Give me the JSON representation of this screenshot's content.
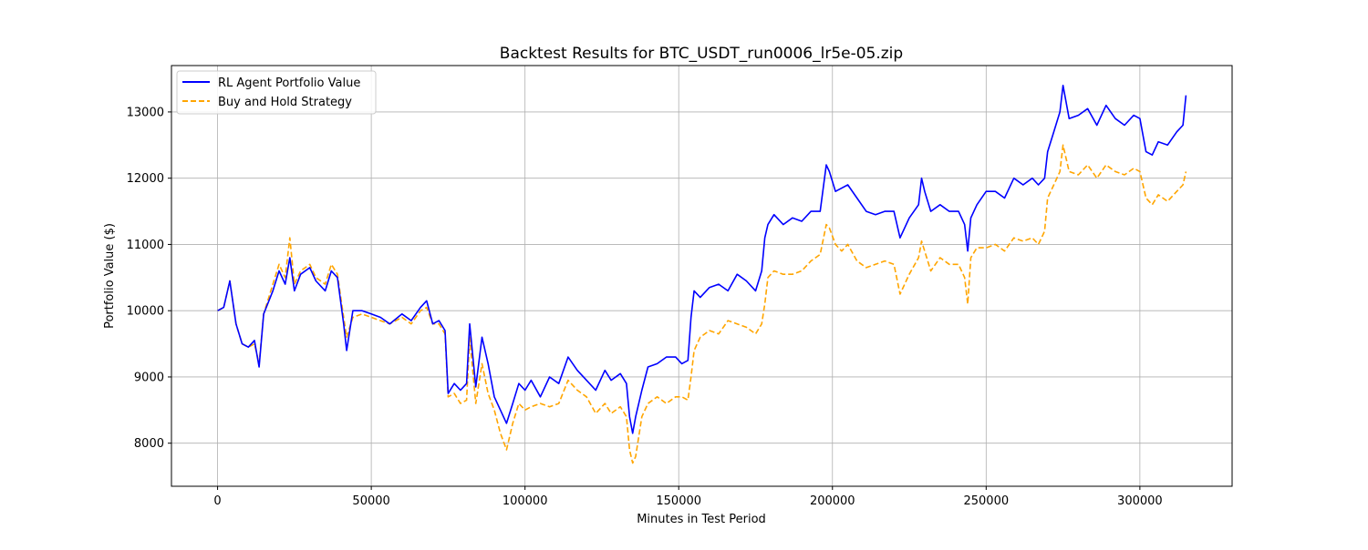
{
  "chart_data": {
    "type": "line",
    "title": "Backtest Results for BTC_USDT_run0006_lr5e-05.zip",
    "xlabel": "Minutes in Test Period",
    "ylabel": "Portfolio Value ($)",
    "xlim": [
      -15000,
      330000
    ],
    "ylim": [
      7350,
      13700
    ],
    "x_ticks": [
      0,
      50000,
      100000,
      150000,
      200000,
      250000,
      300000
    ],
    "x_tick_labels": [
      "0",
      "50000",
      "100000",
      "150000",
      "200000",
      "250000",
      "300000"
    ],
    "y_ticks": [
      8000,
      9000,
      10000,
      11000,
      12000,
      13000
    ],
    "y_tick_labels": [
      "8000",
      "9000",
      "10000",
      "11000",
      "12000",
      "13000"
    ],
    "grid": true,
    "legend_position": "upper-left",
    "series": [
      {
        "name": "RL Agent Portfolio Value",
        "color": "#0000ff",
        "style": "solid",
        "x": [
          0,
          2000,
          4000,
          6000,
          8000,
          10000,
          12000,
          13500,
          15000,
          18000,
          20000,
          22000,
          23500,
          25000,
          27000,
          30000,
          32000,
          35000,
          37000,
          39000,
          41000,
          42000,
          44000,
          47000,
          50000,
          53000,
          56000,
          60000,
          63000,
          66000,
          68000,
          70000,
          72000,
          74000,
          75000,
          77000,
          79000,
          81000,
          82000,
          84000,
          86000,
          88000,
          90000,
          92000,
          94000,
          96000,
          98000,
          100000,
          102000,
          105000,
          108000,
          111000,
          114000,
          117000,
          120000,
          123000,
          126000,
          128000,
          131000,
          133000,
          134000,
          135000,
          136000,
          138000,
          140000,
          143000,
          146000,
          149000,
          151000,
          153000,
          154000,
          155000,
          157000,
          160000,
          163000,
          166000,
          169000,
          172000,
          175000,
          177000,
          178000,
          179000,
          181000,
          184000,
          187000,
          190000,
          193000,
          196000,
          198000,
          199000,
          201000,
          203000,
          205000,
          208000,
          211000,
          214000,
          217000,
          220000,
          222000,
          225000,
          228000,
          229000,
          230000,
          232000,
          235000,
          238000,
          241000,
          243000,
          244000,
          245000,
          247000,
          250000,
          253000,
          256000,
          259000,
          262000,
          265000,
          267000,
          269000,
          270000,
          272000,
          274000,
          275000,
          277000,
          280000,
          283000,
          286000,
          289000,
          292000,
          295000,
          298000,
          300000,
          302000,
          304000,
          306000,
          309000,
          312000,
          314000,
          315000
        ],
        "y": [
          10000,
          10050,
          10450,
          9800,
          9500,
          9450,
          9550,
          9150,
          9950,
          10300,
          10600,
          10400,
          10800,
          10300,
          10550,
          10650,
          10450,
          10300,
          10600,
          10500,
          9800,
          9400,
          10000,
          10000,
          9950,
          9900,
          9800,
          9950,
          9850,
          10050,
          10150,
          9800,
          9850,
          9700,
          8750,
          8900,
          8800,
          8900,
          9800,
          8850,
          9600,
          9200,
          8700,
          8500,
          8300,
          8600,
          8900,
          8800,
          8950,
          8700,
          9000,
          8900,
          9300,
          9100,
          8950,
          8800,
          9100,
          8950,
          9050,
          8900,
          8400,
          8150,
          8400,
          8800,
          9150,
          9200,
          9300,
          9300,
          9200,
          9250,
          9900,
          10300,
          10200,
          10350,
          10400,
          10300,
          10550,
          10450,
          10300,
          10600,
          11100,
          11300,
          11450,
          11300,
          11400,
          11350,
          11500,
          11500,
          12200,
          12100,
          11800,
          11850,
          11900,
          11700,
          11500,
          11450,
          11500,
          11500,
          11100,
          11400,
          11600,
          12000,
          11800,
          11500,
          11600,
          11500,
          11500,
          11300,
          10900,
          11400,
          11600,
          11800,
          11800,
          11700,
          12000,
          11900,
          12000,
          11900,
          12000,
          12400,
          12700,
          13000,
          13400,
          12900,
          12950,
          13050,
          12800,
          13100,
          12900,
          12800,
          12950,
          12900,
          12400,
          12350,
          12550,
          12500,
          12700,
          12800,
          13250
        ]
      },
      {
        "name": "Buy and Hold Strategy",
        "color": "#ffa500",
        "style": "dashed",
        "x": [
          0,
          2000,
          4000,
          6000,
          8000,
          10000,
          12000,
          13500,
          15000,
          18000,
          20000,
          22000,
          23500,
          25000,
          27000,
          30000,
          32000,
          35000,
          37000,
          39000,
          41000,
          42000,
          44000,
          47000,
          50000,
          53000,
          56000,
          60000,
          63000,
          66000,
          68000,
          70000,
          72000,
          74000,
          75000,
          77000,
          79000,
          81000,
          82000,
          84000,
          86000,
          88000,
          90000,
          92000,
          94000,
          96000,
          98000,
          100000,
          102000,
          105000,
          108000,
          111000,
          114000,
          117000,
          120000,
          123000,
          126000,
          128000,
          131000,
          133000,
          134000,
          135000,
          136000,
          138000,
          140000,
          143000,
          146000,
          149000,
          151000,
          153000,
          154000,
          155000,
          157000,
          160000,
          163000,
          166000,
          169000,
          172000,
          175000,
          177000,
          178000,
          179000,
          181000,
          184000,
          187000,
          190000,
          193000,
          196000,
          198000,
          199000,
          201000,
          203000,
          205000,
          208000,
          211000,
          214000,
          217000,
          220000,
          222000,
          225000,
          228000,
          229000,
          230000,
          232000,
          235000,
          238000,
          241000,
          243000,
          244000,
          245000,
          247000,
          250000,
          253000,
          256000,
          259000,
          262000,
          265000,
          267000,
          269000,
          270000,
          272000,
          274000,
          275000,
          277000,
          280000,
          283000,
          286000,
          289000,
          292000,
          295000,
          298000,
          300000,
          302000,
          304000,
          306000,
          309000,
          312000,
          314000,
          315000
        ],
        "y": [
          10000,
          10050,
          10450,
          9800,
          9500,
          9450,
          9500,
          9200,
          9950,
          10400,
          10700,
          10500,
          11100,
          10400,
          10600,
          10700,
          10500,
          10400,
          10700,
          10550,
          9900,
          9600,
          9900,
          9950,
          9900,
          9850,
          9800,
          9900,
          9800,
          10000,
          10050,
          9800,
          9800,
          9650,
          8700,
          8750,
          8600,
          8650,
          9600,
          8600,
          9200,
          8750,
          8500,
          8150,
          7900,
          8300,
          8600,
          8500,
          8550,
          8600,
          8550,
          8600,
          8950,
          8800,
          8700,
          8450,
          8600,
          8450,
          8550,
          8400,
          7900,
          7700,
          7800,
          8400,
          8600,
          8700,
          8600,
          8700,
          8700,
          8650,
          9000,
          9400,
          9600,
          9700,
          9650,
          9850,
          9800,
          9750,
          9650,
          9800,
          10100,
          10500,
          10600,
          10550,
          10550,
          10600,
          10750,
          10850,
          11300,
          11250,
          11000,
          10900,
          11000,
          10750,
          10650,
          10700,
          10750,
          10700,
          10250,
          10550,
          10800,
          11050,
          10900,
          10600,
          10800,
          10700,
          10700,
          10500,
          10100,
          10800,
          10950,
          10950,
          11000,
          10900,
          11100,
          11050,
          11100,
          11000,
          11200,
          11700,
          11900,
          12100,
          12500,
          12100,
          12050,
          12200,
          12000,
          12200,
          12100,
          12050,
          12150,
          12100,
          11700,
          11600,
          11750,
          11650,
          11800,
          11900,
          12100
        ]
      }
    ]
  }
}
